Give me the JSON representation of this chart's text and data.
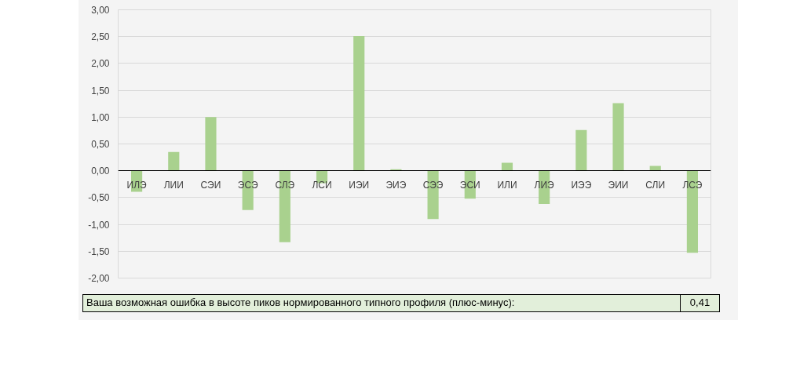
{
  "chart_data": {
    "type": "bar",
    "categories": [
      "ИЛЭ",
      "ЛИИ",
      "СЭИ",
      "ЭСЭ",
      "СЛЭ",
      "ЛСИ",
      "ИЭИ",
      "ЭИЭ",
      "СЭЭ",
      "ЭСИ",
      "ИЛИ",
      "ЛИЭ",
      "ИЭЭ",
      "ЭИИ",
      "СЛИ",
      "ЛСЭ"
    ],
    "values": [
      -0.39,
      0.35,
      1.0,
      -0.73,
      -1.33,
      -0.23,
      2.51,
      0.03,
      -0.9,
      -0.52,
      0.15,
      -0.62,
      0.76,
      1.26,
      0.09,
      -1.53
    ],
    "color": "#a9d18e",
    "ylim": [
      -2.0,
      3.0
    ],
    "yticks": [
      {
        "value": -2,
        "label": "-2,00"
      },
      {
        "value": -1.5,
        "label": "-1,50"
      },
      {
        "value": -1,
        "label": "-1,00"
      },
      {
        "value": -0.5,
        "label": "-0,50"
      },
      {
        "value": 0,
        "label": "0,00"
      },
      {
        "value": 0.5,
        "label": "0,50"
      },
      {
        "value": 1,
        "label": "1,00"
      },
      {
        "value": 1.5,
        "label": "1,50"
      },
      {
        "value": 2,
        "label": "2,00"
      },
      {
        "value": 2.5,
        "label": "2,50"
      },
      {
        "value": 3,
        "label": "3,00"
      }
    ],
    "grid": "y",
    "annotations": [
      "Ваша возможная ошибка в высоте пиков нормированного типного профиля (плюс-минус):",
      "0,41"
    ]
  }
}
